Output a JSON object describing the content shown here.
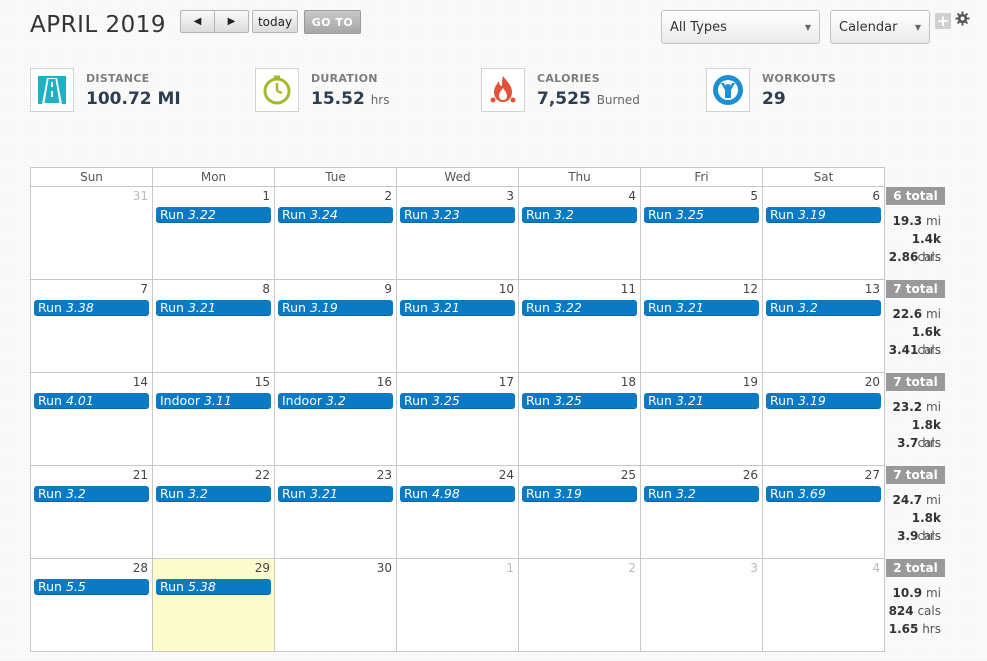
{
  "header": {
    "title": "APRIL 2019",
    "prev_label": "◀",
    "next_label": "▶",
    "today_label": "today",
    "goto_label": "GO TO",
    "type_select": "All Types",
    "view_select": "Calendar",
    "add_label": "+"
  },
  "stats": [
    {
      "label": "DISTANCE",
      "value": "100.72 MI",
      "unit": "",
      "icon": "road-icon",
      "color": "#1fb2c4"
    },
    {
      "label": "DURATION",
      "value": "15.52",
      "unit": "hrs",
      "icon": "stopwatch-icon",
      "color": "#a5b82e"
    },
    {
      "label": "CALORIES",
      "value": "7,525",
      "unit": "Burned",
      "icon": "flame-icon",
      "color": "#e2533a"
    },
    {
      "label": "WORKOUTS",
      "value": "29",
      "unit": "",
      "icon": "person-icon",
      "color": "#1d8fd3"
    }
  ],
  "calendar": {
    "days_of_week": [
      "Sun",
      "Mon",
      "Tue",
      "Wed",
      "Thu",
      "Fri",
      "Sat"
    ],
    "weeks": [
      {
        "days": [
          {
            "num": "31",
            "other": true
          },
          {
            "num": "1",
            "type": "Run",
            "value": "3.22"
          },
          {
            "num": "2",
            "type": "Run",
            "value": "3.24"
          },
          {
            "num": "3",
            "type": "Run",
            "value": "3.23"
          },
          {
            "num": "4",
            "type": "Run",
            "value": "3.2"
          },
          {
            "num": "5",
            "type": "Run",
            "value": "3.25"
          },
          {
            "num": "6",
            "type": "Run",
            "value": "3.19"
          }
        ],
        "summary": {
          "total": "6 total",
          "mi": "19.3",
          "cals": "1.4k",
          "hrs": "2.86"
        }
      },
      {
        "days": [
          {
            "num": "7",
            "type": "Run",
            "value": "3.38"
          },
          {
            "num": "8",
            "type": "Run",
            "value": "3.21"
          },
          {
            "num": "9",
            "type": "Run",
            "value": "3.19"
          },
          {
            "num": "10",
            "type": "Run",
            "value": "3.21"
          },
          {
            "num": "11",
            "type": "Run",
            "value": "3.22"
          },
          {
            "num": "12",
            "type": "Run",
            "value": "3.21"
          },
          {
            "num": "13",
            "type": "Run",
            "value": "3.2"
          }
        ],
        "summary": {
          "total": "7 total",
          "mi": "22.6",
          "cals": "1.6k",
          "hrs": "3.41"
        }
      },
      {
        "days": [
          {
            "num": "14",
            "type": "Run",
            "value": "4.01"
          },
          {
            "num": "15",
            "type": "Indoor",
            "value": "3.11"
          },
          {
            "num": "16",
            "type": "Indoor",
            "value": "3.2"
          },
          {
            "num": "17",
            "type": "Run",
            "value": "3.25"
          },
          {
            "num": "18",
            "type": "Run",
            "value": "3.25"
          },
          {
            "num": "19",
            "type": "Run",
            "value": "3.21"
          },
          {
            "num": "20",
            "type": "Run",
            "value": "3.19"
          }
        ],
        "summary": {
          "total": "7 total",
          "mi": "23.2",
          "cals": "1.8k",
          "hrs": "3.7"
        }
      },
      {
        "days": [
          {
            "num": "21",
            "type": "Run",
            "value": "3.2"
          },
          {
            "num": "22",
            "type": "Run",
            "value": "3.2"
          },
          {
            "num": "23",
            "type": "Run",
            "value": "3.21"
          },
          {
            "num": "24",
            "type": "Run",
            "value": "4.98"
          },
          {
            "num": "25",
            "type": "Run",
            "value": "3.19"
          },
          {
            "num": "26",
            "type": "Run",
            "value": "3.2"
          },
          {
            "num": "27",
            "type": "Run",
            "value": "3.69"
          }
        ],
        "summary": {
          "total": "7 total",
          "mi": "24.7",
          "cals": "1.8k",
          "hrs": "3.9"
        }
      },
      {
        "days": [
          {
            "num": "28",
            "type": "Run",
            "value": "5.5"
          },
          {
            "num": "29",
            "type": "Run",
            "value": "5.38",
            "today": true
          },
          {
            "num": "30"
          },
          {
            "num": "1",
            "other": true
          },
          {
            "num": "2",
            "other": true
          },
          {
            "num": "3",
            "other": true
          },
          {
            "num": "4",
            "other": true
          }
        ],
        "summary": {
          "total": "2 total",
          "mi": "10.9",
          "cals": "824",
          "hrs": "1.65"
        }
      }
    ],
    "summary_units": {
      "mi": "mi",
      "cals": "cals",
      "hrs": "hrs"
    }
  }
}
